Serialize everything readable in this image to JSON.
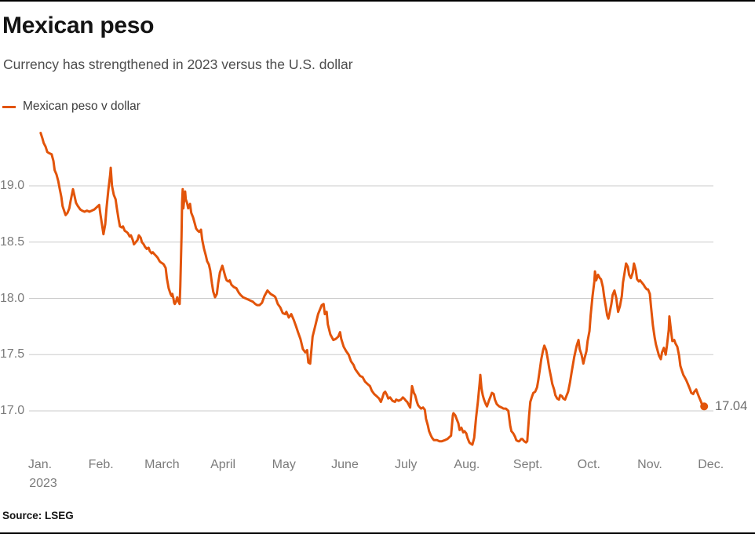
{
  "header": {
    "title": "Mexican peso",
    "subtitle": "Currency has strengthened in 2023 versus the U.S. dollar"
  },
  "legend": {
    "label": "Mexican peso v dollar"
  },
  "footer": {
    "source": "Source: LSEG"
  },
  "colors": {
    "line": "#E2540A",
    "grid": "#CBCBCB",
    "axis_text": "#7B7B7B",
    "title_text": "#141414",
    "subtitle_text": "#4D4D4D",
    "legend_text": "#3D3D3D",
    "end_label_text": "#6E6E6E",
    "source_text": "#141414",
    "rule": "#000000",
    "background": "#FFFFFF"
  },
  "chart_data": {
    "type": "line",
    "title": "Mexican peso",
    "subtitle": "Currency has strengthened in 2023 versus the U.S. dollar",
    "series_name": "Mexican peso v dollar",
    "legend_position": "top-left",
    "grid": "horizontal gridlines only",
    "x_axis": {
      "labels": [
        "Jan.",
        "Feb.",
        "March",
        "April",
        "May",
        "June",
        "July",
        "Aug.",
        "Sept.",
        "Oct.",
        "Nov.",
        "Dec."
      ],
      "first_label_year": "2023",
      "unit": "x value of points = months since Jan 1, 2023 (0 = Jan 1, 11 = Dec 1)"
    },
    "y_axis": {
      "ticks": [
        19.0,
        18.5,
        18.0,
        17.5,
        17.0
      ],
      "tick_labels": [
        "19.0",
        "18.5",
        "18.0",
        "17.5",
        "17.0"
      ],
      "visible_range": [
        16.65,
        19.55
      ]
    },
    "last_value": 17.04,
    "last_value_label": "17.04",
    "points": [
      [
        0.01,
        19.47
      ],
      [
        0.04,
        19.42
      ],
      [
        0.06,
        19.38
      ],
      [
        0.09,
        19.35
      ],
      [
        0.12,
        19.3
      ],
      [
        0.15,
        19.29
      ],
      [
        0.19,
        19.28
      ],
      [
        0.22,
        19.22
      ],
      [
        0.24,
        19.14
      ],
      [
        0.27,
        19.1
      ],
      [
        0.3,
        19.04
      ],
      [
        0.32,
        18.98
      ],
      [
        0.35,
        18.9
      ],
      [
        0.37,
        18.82
      ],
      [
        0.4,
        18.77
      ],
      [
        0.42,
        18.74
      ],
      [
        0.45,
        18.76
      ],
      [
        0.48,
        18.8
      ],
      [
        0.5,
        18.86
      ],
      [
        0.54,
        18.97
      ],
      [
        0.57,
        18.9
      ],
      [
        0.59,
        18.85
      ],
      [
        0.62,
        18.82
      ],
      [
        0.66,
        18.79
      ],
      [
        0.69,
        18.78
      ],
      [
        0.73,
        18.77
      ],
      [
        0.77,
        18.78
      ],
      [
        0.81,
        18.77
      ],
      [
        0.85,
        18.78
      ],
      [
        0.89,
        18.79
      ],
      [
        0.93,
        18.81
      ],
      [
        0.97,
        18.83
      ],
      [
        0.99,
        18.75
      ],
      [
        1.02,
        18.64
      ],
      [
        1.04,
        18.57
      ],
      [
        1.07,
        18.66
      ],
      [
        1.09,
        18.8
      ],
      [
        1.12,
        18.96
      ],
      [
        1.15,
        19.1
      ],
      [
        1.16,
        19.16
      ],
      [
        1.18,
        19.0
      ],
      [
        1.21,
        18.92
      ],
      [
        1.24,
        18.88
      ],
      [
        1.26,
        18.8
      ],
      [
        1.29,
        18.7
      ],
      [
        1.31,
        18.64
      ],
      [
        1.34,
        18.63
      ],
      [
        1.36,
        18.64
      ],
      [
        1.39,
        18.6
      ],
      [
        1.42,
        18.59
      ],
      [
        1.44,
        18.58
      ],
      [
        1.47,
        18.55
      ],
      [
        1.49,
        18.56
      ],
      [
        1.52,
        18.52
      ],
      [
        1.54,
        18.48
      ],
      [
        1.57,
        18.5
      ],
      [
        1.6,
        18.52
      ],
      [
        1.62,
        18.56
      ],
      [
        1.65,
        18.54
      ],
      [
        1.67,
        18.5
      ],
      [
        1.7,
        18.48
      ],
      [
        1.72,
        18.46
      ],
      [
        1.75,
        18.44
      ],
      [
        1.78,
        18.45
      ],
      [
        1.8,
        18.42
      ],
      [
        1.83,
        18.4
      ],
      [
        1.85,
        18.41
      ],
      [
        1.88,
        18.39
      ],
      [
        1.9,
        18.38
      ],
      [
        1.93,
        18.36
      ],
      [
        1.96,
        18.33
      ],
      [
        1.98,
        18.32
      ],
      [
        2.01,
        18.31
      ],
      [
        2.03,
        18.3
      ],
      [
        2.06,
        18.27
      ],
      [
        2.08,
        18.18
      ],
      [
        2.11,
        18.09
      ],
      [
        2.14,
        18.04
      ],
      [
        2.16,
        18.02
      ],
      [
        2.17,
        18.04
      ],
      [
        2.19,
        17.99
      ],
      [
        2.2,
        17.96
      ],
      [
        2.21,
        17.95
      ],
      [
        2.23,
        17.97
      ],
      [
        2.24,
        17.99
      ],
      [
        2.25,
        18.01
      ],
      [
        2.26,
        17.99
      ],
      [
        2.28,
        17.96
      ],
      [
        2.29,
        17.95
      ],
      [
        2.3,
        18.1
      ],
      [
        2.32,
        18.55
      ],
      [
        2.33,
        18.85
      ],
      [
        2.34,
        18.97
      ],
      [
        2.35,
        18.8
      ],
      [
        2.37,
        18.9
      ],
      [
        2.38,
        18.95
      ],
      [
        2.39,
        18.88
      ],
      [
        2.41,
        18.85
      ],
      [
        2.43,
        18.8
      ],
      [
        2.46,
        18.84
      ],
      [
        2.48,
        18.76
      ],
      [
        2.51,
        18.72
      ],
      [
        2.54,
        18.66
      ],
      [
        2.56,
        18.62
      ],
      [
        2.59,
        18.6
      ],
      [
        2.61,
        18.59
      ],
      [
        2.64,
        18.61
      ],
      [
        2.66,
        18.52
      ],
      [
        2.69,
        18.44
      ],
      [
        2.72,
        18.38
      ],
      [
        2.74,
        18.33
      ],
      [
        2.77,
        18.3
      ],
      [
        2.79,
        18.25
      ],
      [
        2.82,
        18.13
      ],
      [
        2.84,
        18.06
      ],
      [
        2.87,
        18.01
      ],
      [
        2.9,
        18.04
      ],
      [
        2.92,
        18.13
      ],
      [
        2.95,
        18.23
      ],
      [
        2.99,
        18.29
      ],
      [
        3.01,
        18.25
      ],
      [
        3.04,
        18.19
      ],
      [
        3.06,
        18.16
      ],
      [
        3.09,
        18.15
      ],
      [
        3.11,
        18.16
      ],
      [
        3.14,
        18.12
      ],
      [
        3.18,
        18.1
      ],
      [
        3.22,
        18.09
      ],
      [
        3.26,
        18.05
      ],
      [
        3.29,
        18.03
      ],
      [
        3.33,
        18.01
      ],
      [
        3.37,
        18.0
      ],
      [
        3.41,
        17.99
      ],
      [
        3.45,
        17.98
      ],
      [
        3.49,
        17.97
      ],
      [
        3.53,
        17.95
      ],
      [
        3.56,
        17.94
      ],
      [
        3.6,
        17.94
      ],
      [
        3.64,
        17.96
      ],
      [
        3.68,
        18.02
      ],
      [
        3.73,
        18.07
      ],
      [
        3.78,
        18.04
      ],
      [
        3.84,
        18.02
      ],
      [
        3.86,
        18.01
      ],
      [
        3.9,
        17.95
      ],
      [
        3.94,
        17.92
      ],
      [
        3.98,
        17.87
      ],
      [
        4.02,
        17.86
      ],
      [
        4.04,
        17.88
      ],
      [
        4.08,
        17.83
      ],
      [
        4.12,
        17.86
      ],
      [
        4.16,
        17.81
      ],
      [
        4.2,
        17.75
      ],
      [
        4.23,
        17.7
      ],
      [
        4.27,
        17.64
      ],
      [
        4.31,
        17.55
      ],
      [
        4.35,
        17.52
      ],
      [
        4.38,
        17.54
      ],
      [
        4.4,
        17.43
      ],
      [
        4.43,
        17.42
      ],
      [
        4.47,
        17.66
      ],
      [
        4.52,
        17.77
      ],
      [
        4.56,
        17.86
      ],
      [
        4.59,
        17.9
      ],
      [
        4.62,
        17.94
      ],
      [
        4.65,
        17.95
      ],
      [
        4.67,
        17.86
      ],
      [
        4.7,
        17.88
      ],
      [
        4.72,
        17.77
      ],
      [
        4.76,
        17.68
      ],
      [
        4.81,
        17.63
      ],
      [
        4.85,
        17.64
      ],
      [
        4.89,
        17.66
      ],
      [
        4.92,
        17.7
      ],
      [
        4.94,
        17.64
      ],
      [
        4.98,
        17.57
      ],
      [
        5.02,
        17.53
      ],
      [
        5.06,
        17.5
      ],
      [
        5.1,
        17.44
      ],
      [
        5.14,
        17.41
      ],
      [
        5.17,
        17.37
      ],
      [
        5.21,
        17.34
      ],
      [
        5.25,
        17.31
      ],
      [
        5.29,
        17.3
      ],
      [
        5.33,
        17.26
      ],
      [
        5.37,
        17.24
      ],
      [
        5.41,
        17.22
      ],
      [
        5.44,
        17.18
      ],
      [
        5.48,
        17.15
      ],
      [
        5.52,
        17.13
      ],
      [
        5.56,
        17.11
      ],
      [
        5.59,
        17.08
      ],
      [
        5.61,
        17.11
      ],
      [
        5.64,
        17.16
      ],
      [
        5.66,
        17.17
      ],
      [
        5.69,
        17.14
      ],
      [
        5.71,
        17.11
      ],
      [
        5.74,
        17.12
      ],
      [
        5.78,
        17.09
      ],
      [
        5.82,
        17.08
      ],
      [
        5.84,
        17.1
      ],
      [
        5.88,
        17.09
      ],
      [
        5.92,
        17.1
      ],
      [
        5.95,
        17.12
      ],
      [
        5.97,
        17.11
      ],
      [
        6.0,
        17.09
      ],
      [
        6.02,
        17.08
      ],
      [
        6.05,
        17.05
      ],
      [
        6.07,
        17.03
      ],
      [
        6.1,
        17.22
      ],
      [
        6.13,
        17.16
      ],
      [
        6.15,
        17.14
      ],
      [
        6.18,
        17.08
      ],
      [
        6.2,
        17.05
      ],
      [
        6.23,
        17.03
      ],
      [
        6.25,
        17.02
      ],
      [
        6.28,
        17.03
      ],
      [
        6.31,
        17.01
      ],
      [
        6.33,
        16.93
      ],
      [
        6.36,
        16.87
      ],
      [
        6.38,
        16.82
      ],
      [
        6.41,
        16.78
      ],
      [
        6.43,
        16.76
      ],
      [
        6.46,
        16.74
      ],
      [
        6.51,
        16.74
      ],
      [
        6.55,
        16.73
      ],
      [
        6.59,
        16.73
      ],
      [
        6.64,
        16.74
      ],
      [
        6.68,
        16.75
      ],
      [
        6.72,
        16.77
      ],
      [
        6.74,
        16.78
      ],
      [
        6.77,
        16.96
      ],
      [
        6.78,
        16.98
      ],
      [
        6.81,
        16.96
      ],
      [
        6.83,
        16.93
      ],
      [
        6.86,
        16.89
      ],
      [
        6.88,
        16.83
      ],
      [
        6.91,
        16.85
      ],
      [
        6.94,
        16.81
      ],
      [
        6.96,
        16.82
      ],
      [
        6.99,
        16.8
      ],
      [
        7.01,
        16.76
      ],
      [
        7.04,
        16.72
      ],
      [
        7.06,
        16.71
      ],
      [
        7.09,
        16.7
      ],
      [
        7.12,
        16.76
      ],
      [
        7.13,
        16.82
      ],
      [
        7.15,
        16.94
      ],
      [
        7.18,
        17.08
      ],
      [
        7.21,
        17.25
      ],
      [
        7.22,
        17.32
      ],
      [
        7.24,
        17.2
      ],
      [
        7.26,
        17.14
      ],
      [
        7.28,
        17.1
      ],
      [
        7.31,
        17.06
      ],
      [
        7.33,
        17.04
      ],
      [
        7.36,
        17.09
      ],
      [
        7.39,
        17.13
      ],
      [
        7.41,
        17.16
      ],
      [
        7.44,
        17.15
      ],
      [
        7.46,
        17.1
      ],
      [
        7.49,
        17.06
      ],
      [
        7.53,
        17.04
      ],
      [
        7.57,
        17.03
      ],
      [
        7.6,
        17.02
      ],
      [
        7.64,
        17.02
      ],
      [
        7.68,
        17.0
      ],
      [
        7.71,
        16.87
      ],
      [
        7.73,
        16.82
      ],
      [
        7.76,
        16.8
      ],
      [
        7.79,
        16.77
      ],
      [
        7.81,
        16.74
      ],
      [
        7.84,
        16.73
      ],
      [
        7.86,
        16.73
      ],
      [
        7.89,
        16.75
      ],
      [
        7.91,
        16.75
      ],
      [
        7.94,
        16.73
      ],
      [
        7.97,
        16.72
      ],
      [
        7.99,
        16.73
      ],
      [
        8.02,
        16.96
      ],
      [
        8.04,
        17.08
      ],
      [
        8.07,
        17.13
      ],
      [
        8.09,
        17.16
      ],
      [
        8.12,
        17.17
      ],
      [
        8.15,
        17.21
      ],
      [
        8.17,
        17.27
      ],
      [
        8.2,
        17.38
      ],
      [
        8.22,
        17.46
      ],
      [
        8.25,
        17.54
      ],
      [
        8.27,
        17.58
      ],
      [
        8.3,
        17.54
      ],
      [
        8.33,
        17.45
      ],
      [
        8.35,
        17.38
      ],
      [
        8.38,
        17.3
      ],
      [
        8.4,
        17.24
      ],
      [
        8.43,
        17.19
      ],
      [
        8.45,
        17.14
      ],
      [
        8.48,
        17.11
      ],
      [
        8.51,
        17.1
      ],
      [
        8.53,
        17.14
      ],
      [
        8.56,
        17.13
      ],
      [
        8.58,
        17.11
      ],
      [
        8.61,
        17.1
      ],
      [
        8.63,
        17.13
      ],
      [
        8.66,
        17.17
      ],
      [
        8.69,
        17.25
      ],
      [
        8.72,
        17.35
      ],
      [
        8.76,
        17.48
      ],
      [
        8.8,
        17.58
      ],
      [
        8.83,
        17.63
      ],
      [
        8.85,
        17.55
      ],
      [
        8.88,
        17.5
      ],
      [
        8.91,
        17.42
      ],
      [
        8.93,
        17.47
      ],
      [
        8.96,
        17.53
      ],
      [
        8.98,
        17.62
      ],
      [
        9.01,
        17.71
      ],
      [
        9.03,
        17.85
      ],
      [
        9.06,
        18.02
      ],
      [
        9.09,
        18.15
      ],
      [
        9.1,
        18.24
      ],
      [
        9.12,
        18.16
      ],
      [
        9.15,
        18.21
      ],
      [
        9.18,
        18.18
      ],
      [
        9.2,
        18.17
      ],
      [
        9.23,
        18.1
      ],
      [
        9.25,
        18.02
      ],
      [
        9.28,
        17.92
      ],
      [
        9.3,
        17.85
      ],
      [
        9.32,
        17.82
      ],
      [
        9.34,
        17.87
      ],
      [
        9.37,
        17.95
      ],
      [
        9.39,
        18.03
      ],
      [
        9.42,
        18.07
      ],
      [
        9.45,
        18.0
      ],
      [
        9.47,
        17.92
      ],
      [
        9.48,
        17.88
      ],
      [
        9.51,
        17.93
      ],
      [
        9.54,
        18.02
      ],
      [
        9.56,
        18.14
      ],
      [
        9.59,
        18.24
      ],
      [
        9.61,
        18.31
      ],
      [
        9.64,
        18.28
      ],
      [
        9.66,
        18.21
      ],
      [
        9.69,
        18.18
      ],
      [
        9.72,
        18.23
      ],
      [
        9.74,
        18.31
      ],
      [
        9.77,
        18.25
      ],
      [
        9.79,
        18.17
      ],
      [
        9.82,
        18.15
      ],
      [
        9.84,
        18.16
      ],
      [
        9.87,
        18.14
      ],
      [
        9.9,
        18.12
      ],
      [
        9.92,
        18.1
      ],
      [
        9.95,
        18.08
      ],
      [
        9.97,
        18.08
      ],
      [
        10.0,
        18.04
      ],
      [
        10.02,
        17.92
      ],
      [
        10.05,
        17.76
      ],
      [
        10.08,
        17.65
      ],
      [
        10.1,
        17.59
      ],
      [
        10.13,
        17.53
      ],
      [
        10.15,
        17.49
      ],
      [
        10.18,
        17.46
      ],
      [
        10.2,
        17.52
      ],
      [
        10.23,
        17.56
      ],
      [
        10.26,
        17.5
      ],
      [
        10.28,
        17.58
      ],
      [
        10.31,
        17.72
      ],
      [
        10.32,
        17.84
      ],
      [
        10.35,
        17.7
      ],
      [
        10.37,
        17.62
      ],
      [
        10.4,
        17.63
      ],
      [
        10.42,
        17.6
      ],
      [
        10.45,
        17.57
      ],
      [
        10.48,
        17.49
      ],
      [
        10.5,
        17.4
      ],
      [
        10.53,
        17.35
      ],
      [
        10.55,
        17.32
      ],
      [
        10.58,
        17.29
      ],
      [
        10.6,
        17.27
      ],
      [
        10.63,
        17.23
      ],
      [
        10.66,
        17.19
      ],
      [
        10.68,
        17.16
      ],
      [
        10.71,
        17.15
      ],
      [
        10.73,
        17.17
      ],
      [
        10.76,
        17.19
      ],
      [
        10.78,
        17.16
      ],
      [
        10.81,
        17.12
      ],
      [
        10.84,
        17.08
      ],
      [
        10.86,
        17.05
      ],
      [
        10.89,
        17.04
      ]
    ]
  }
}
